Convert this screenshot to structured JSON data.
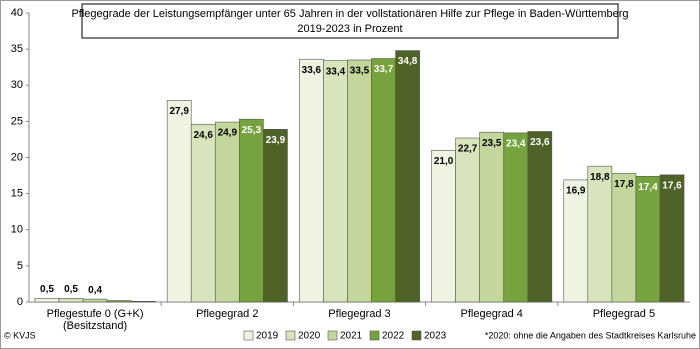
{
  "chart_data": {
    "type": "bar",
    "title": "Pflegegrade der Leistungsempfänger unter 65 Jahren in der vollstationären Hilfe zur Pflege in Baden-Württemberg",
    "subtitle": "2019-2023 in Prozent",
    "categories": [
      "Pflegestufe 0 (G+K)\n(Besitzstand)",
      "Pflegegrad 2",
      "Pflegegrad 3",
      "Pflegegrad 4",
      "Pflegegrad 5"
    ],
    "series": [
      {
        "name": "2019",
        "color": "#eef3e2",
        "values": [
          0.5,
          27.9,
          33.6,
          21.0,
          16.9
        ],
        "value_labels": [
          "0,5",
          "27,9",
          "33,6",
          "21,0",
          "16,9"
        ]
      },
      {
        "name": "2020",
        "color": "#d8e4bc",
        "values": [
          0.5,
          24.6,
          33.4,
          22.7,
          18.8
        ],
        "value_labels": [
          "0,5",
          "24,6",
          "33,4",
          "22,7",
          "18,8"
        ]
      },
      {
        "name": "2021",
        "color": "#c3d69b",
        "values": [
          0.4,
          24.9,
          33.5,
          23.5,
          17.8
        ],
        "value_labels": [
          "0,4",
          "24,9",
          "33,5",
          "23,5",
          "17,8"
        ]
      },
      {
        "name": "2022",
        "color": "#77a33e",
        "values": [
          0.2,
          25.3,
          33.7,
          23.4,
          17.4
        ],
        "value_labels": [
          null,
          "25,3",
          "33,7",
          "23,4",
          "17,4"
        ]
      },
      {
        "name": "2023",
        "color": "#4f6228",
        "values": [
          0.1,
          23.9,
          34.8,
          23.6,
          17.6
        ],
        "value_labels": [
          null,
          "23,9",
          "34,8",
          "23,6",
          "17,6"
        ]
      }
    ],
    "ylim": [
      0,
      40
    ],
    "yticks": [
      0,
      5,
      10,
      15,
      20,
      25,
      30,
      35,
      40
    ],
    "grid": false,
    "footnote": "*2020: ohne die Angaben des Stadtkreises Karlsruhe",
    "source": "© KVJS"
  }
}
